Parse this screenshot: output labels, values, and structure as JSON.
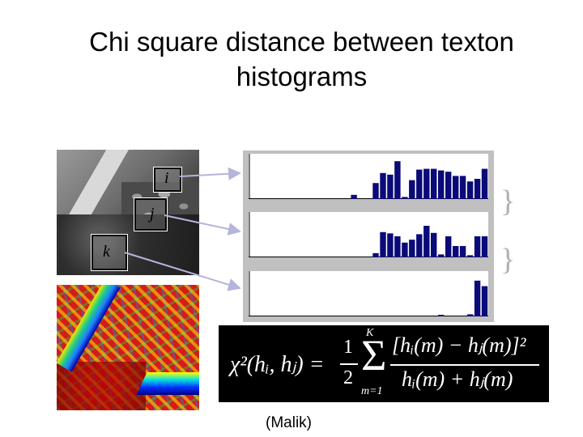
{
  "title_line1": "Chi square distance between texton",
  "title_line2": "histograms",
  "labels": {
    "i": "i",
    "j": "j",
    "k": "k"
  },
  "citation": "(Malik)",
  "formula": {
    "lhs": "χ²(hᵢ, hⱼ) =",
    "half_num": "1",
    "half_den": "2",
    "sum_upper": "K",
    "sum_lower": "m=1",
    "numerator": "[hᵢ(m) − hⱼ(m)]²",
    "denominator": "hᵢ(m) + hⱼ(m)"
  },
  "histograms": [
    {
      "name": "histogram-i",
      "values": [
        0,
        0,
        0,
        0,
        0,
        0,
        0,
        0,
        0,
        0,
        0,
        0,
        0,
        0,
        0.1,
        0,
        0,
        0.38,
        0.62,
        0.58,
        0.9,
        0.05,
        0.45,
        0.7,
        0.72,
        0.72,
        0.68,
        0.65,
        0.55,
        0.55,
        0.42,
        0.48,
        0.72
      ]
    },
    {
      "name": "histogram-j",
      "values": [
        0,
        0,
        0,
        0,
        0,
        0,
        0,
        0,
        0,
        0,
        0,
        0,
        0,
        0,
        0,
        0,
        0,
        0.1,
        0.6,
        0.57,
        0.5,
        0.35,
        0.42,
        0.55,
        0.75,
        0.58,
        0.07,
        0.5,
        0.27,
        0.27,
        0.05,
        0.5,
        0.5
      ]
    },
    {
      "name": "histogram-k",
      "values": [
        0,
        0,
        0,
        0,
        0,
        0,
        0,
        0,
        0,
        0,
        0,
        0,
        0,
        0,
        0,
        0,
        0,
        0,
        0,
        0,
        0,
        0,
        0,
        0,
        0,
        0,
        0.02,
        0,
        0,
        0,
        0.05,
        0.85,
        0.72
      ]
    }
  ],
  "colors": {
    "bar": "#0a0a78",
    "panel": "#c0c0c0",
    "formula_bg": "#000000",
    "arrow": "#b4b4dc"
  }
}
